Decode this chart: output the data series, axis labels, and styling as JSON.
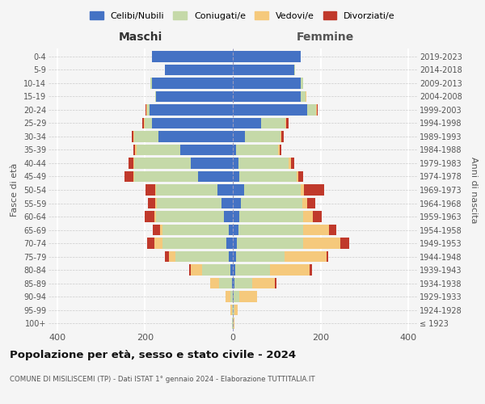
{
  "age_groups": [
    "100+",
    "95-99",
    "90-94",
    "85-89",
    "80-84",
    "75-79",
    "70-74",
    "65-69",
    "60-64",
    "55-59",
    "50-54",
    "45-49",
    "40-44",
    "35-39",
    "30-34",
    "25-29",
    "20-24",
    "15-19",
    "10-14",
    "5-9",
    "0-4"
  ],
  "birth_years": [
    "≤ 1923",
    "1924-1928",
    "1929-1933",
    "1934-1938",
    "1939-1943",
    "1944-1948",
    "1949-1953",
    "1954-1958",
    "1959-1963",
    "1964-1968",
    "1969-1973",
    "1974-1978",
    "1979-1983",
    "1984-1988",
    "1989-1993",
    "1994-1998",
    "1999-2003",
    "2004-2008",
    "2009-2013",
    "2014-2018",
    "2019-2023"
  ],
  "colors": {
    "celibe": "#4472C4",
    "coniugato": "#C5D9A8",
    "vedovo": "#F5C97C",
    "divorziato": "#C0392B"
  },
  "maschi": {
    "celibe": [
      0,
      0,
      0,
      2,
      5,
      10,
      15,
      10,
      20,
      25,
      35,
      80,
      95,
      120,
      170,
      185,
      190,
      175,
      185,
      155,
      185
    ],
    "coniugato": [
      1,
      2,
      5,
      30,
      65,
      120,
      145,
      150,
      155,
      148,
      140,
      145,
      130,
      100,
      55,
      15,
      5,
      2,
      2,
      0,
      0
    ],
    "vedovo": [
      1,
      3,
      12,
      20,
      25,
      15,
      18,
      5,
      3,
      3,
      2,
      2,
      2,
      2,
      2,
      2,
      2,
      0,
      0,
      0,
      0
    ],
    "divorziato": [
      0,
      0,
      0,
      0,
      5,
      10,
      18,
      18,
      22,
      18,
      22,
      20,
      10,
      5,
      3,
      5,
      2,
      0,
      0,
      0,
      0
    ]
  },
  "femmine": {
    "nubile": [
      0,
      0,
      2,
      3,
      5,
      8,
      10,
      12,
      15,
      18,
      25,
      15,
      12,
      8,
      28,
      65,
      170,
      155,
      155,
      140,
      155
    ],
    "coniugata": [
      1,
      3,
      12,
      42,
      80,
      110,
      150,
      148,
      145,
      140,
      130,
      130,
      115,
      95,
      80,
      55,
      20,
      10,
      5,
      2,
      0
    ],
    "vedova": [
      2,
      8,
      42,
      50,
      90,
      95,
      85,
      60,
      22,
      12,
      8,
      5,
      5,
      3,
      3,
      2,
      2,
      2,
      0,
      0,
      0
    ],
    "divorziata": [
      0,
      0,
      0,
      5,
      5,
      5,
      20,
      15,
      20,
      18,
      45,
      10,
      8,
      5,
      5,
      5,
      2,
      0,
      0,
      0,
      0
    ]
  },
  "xlim": 420,
  "title": "Popolazione per età, sesso e stato civile - 2024",
  "subtitle": "COMUNE DI MISILISCEMI (TP) - Dati ISTAT 1° gennaio 2024 - Elaborazione TUTTITALIA.IT",
  "ylabel_left": "Fasce di età",
  "ylabel_right": "Anni di nascita",
  "xlabel_left": "Maschi",
  "xlabel_right": "Femmine",
  "bg_color": "#f5f5f5",
  "bar_height": 0.8
}
